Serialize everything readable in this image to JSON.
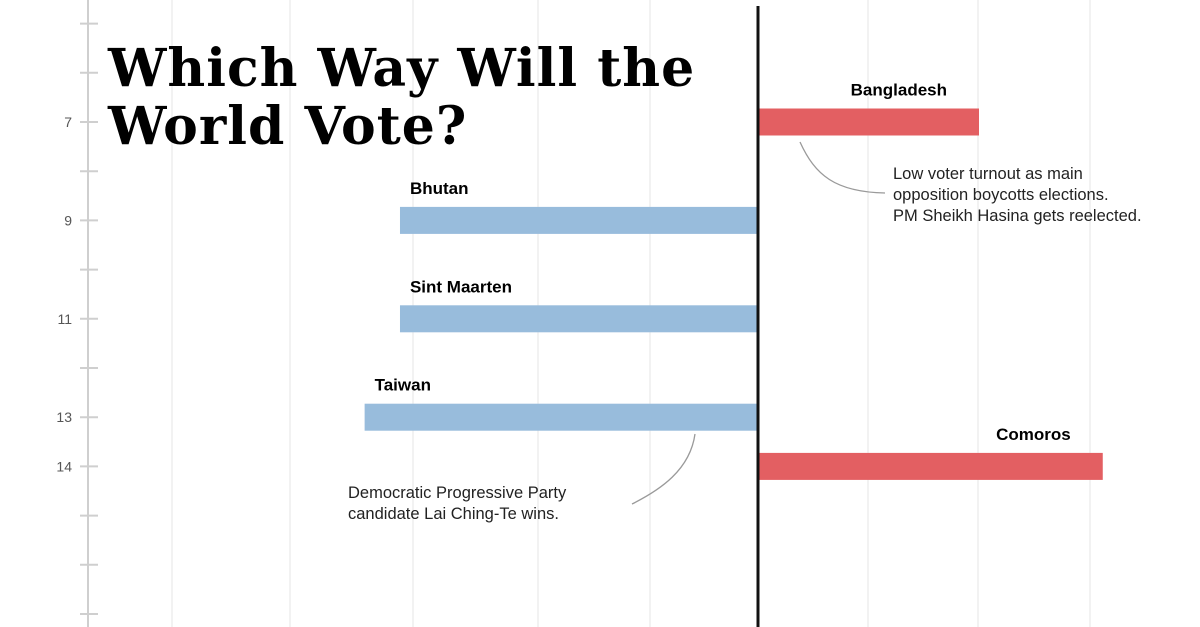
{
  "title_lines": [
    "Which Way Will the",
    "World Vote?"
  ],
  "colors": {
    "blue": "#98bcdc",
    "red": "#e35f62",
    "axis": "#111111",
    "grid": "#e6e6e6",
    "tick": "#cfcfcf",
    "tick_label": "#555555",
    "annotation_line": "#9a9a9a"
  },
  "chart_data": {
    "type": "bar",
    "orientation": "horizontal-diverging",
    "y_tick_labels": [
      7,
      9,
      11,
      13,
      14
    ],
    "ylim": [
      5,
      17
    ],
    "xlim": [
      -8,
      9
    ],
    "grid": true,
    "bars": [
      {
        "label": "Bangladesh",
        "y": 7,
        "value": 5.0,
        "color": "#e35f62"
      },
      {
        "label": "Bhutan",
        "y": 9,
        "value": -8.1,
        "color": "#98bcdc"
      },
      {
        "label": "Sint Maarten",
        "y": 11,
        "value": -8.1,
        "color": "#98bcdc"
      },
      {
        "label": "Taiwan",
        "y": 13,
        "value": -8.9,
        "color": "#98bcdc"
      },
      {
        "label": "Comoros",
        "y": 14,
        "value": 7.8,
        "color": "#e35f62"
      }
    ],
    "annotations": [
      {
        "target": "Bangladesh",
        "lines": [
          "Low voter turnout as main",
          "opposition boycotts elections.",
          "PM Sheikh Hasina gets reelected."
        ]
      },
      {
        "target": "Taiwan",
        "lines": [
          "Democratic Progressive Party",
          "candidate Lai Ching-Te wins."
        ]
      }
    ]
  }
}
